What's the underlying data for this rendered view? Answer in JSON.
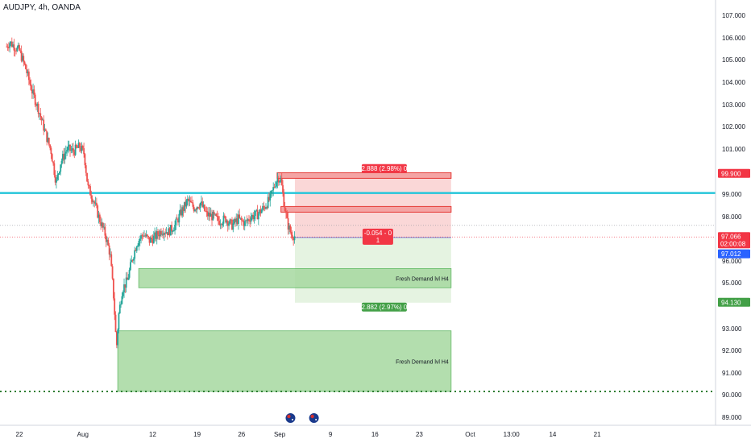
{
  "header": {
    "symbol_title": "AUDJPY, 4h, OANDA"
  },
  "colors": {
    "up": "#26a69a",
    "down": "#ef5350",
    "resistance_line": "#26c6da",
    "support_dots": "#2e7d32",
    "stop_fill": "#f8c9c9",
    "target_fill": "#dff0da",
    "demand_fill": "#a6d9a0",
    "supply_fill": "#f4a4a4",
    "price_tag_red": "#f23645",
    "price_tag_blue": "#2962ff",
    "price_tag_green": "#43a047"
  },
  "chart_data": {
    "type": "candlestick",
    "timeframe": "4h",
    "ylim": [
      88.5,
      107.6
    ],
    "y_ticks": [
      89.0,
      90.0,
      91.0,
      92.0,
      93.0,
      95.0,
      96.0,
      97.0,
      98.0,
      99.0,
      100.0,
      101.0,
      102.0,
      103.0,
      104.0,
      105.0,
      106.0,
      107.0
    ],
    "y_tick_labels": [
      "89.000",
      "90.000",
      "91.000",
      "92.000",
      "93.000",
      "95.000",
      "96.000",
      "97.000",
      "98.000",
      "99.000",
      "100.000",
      "101.000",
      "102.000",
      "103.000",
      "104.000",
      "105.000",
      "106.000",
      "107.000"
    ],
    "x_ticks": [
      {
        "label": "22",
        "day": 0
      },
      {
        "label": "Aug",
        "day": 10
      },
      {
        "label": "12",
        "day": 21
      },
      {
        "label": "19",
        "day": 28
      },
      {
        "label": "26",
        "day": 35
      },
      {
        "label": "Sep",
        "day": 41
      },
      {
        "label": "9",
        "day": 49
      },
      {
        "label": "16",
        "day": 56
      },
      {
        "label": "23",
        "day": 63
      },
      {
        "label": "Oct",
        "day": 71
      },
      {
        "label": "13:00",
        "day": 77.5
      },
      {
        "label": "14",
        "day": 84
      },
      {
        "label": "21",
        "day": 91
      }
    ],
    "price_path": [
      [
        -2,
        105.6
      ],
      [
        -1.5,
        105.8
      ],
      [
        0,
        105.4
      ],
      [
        1,
        104.6
      ],
      [
        2,
        103.6
      ],
      [
        3,
        102.8
      ],
      [
        4,
        101.8
      ],
      [
        5,
        100.9
      ],
      [
        5.8,
        99.5
      ],
      [
        6.5,
        100.4
      ],
      [
        7.5,
        101.0
      ],
      [
        8.5,
        100.9
      ],
      [
        9.5,
        101.1
      ],
      [
        10.2,
        100.8
      ],
      [
        10.8,
        99.3
      ],
      [
        11.6,
        98.8
      ],
      [
        12.6,
        97.9
      ],
      [
        13.5,
        97.2
      ],
      [
        14.3,
        96.3
      ],
      [
        14.9,
        94.2
      ],
      [
        15.3,
        92.1
      ],
      [
        15.6,
        93.5
      ],
      [
        16.2,
        94.7
      ],
      [
        17,
        95.1
      ],
      [
        17.7,
        96.0
      ],
      [
        18.5,
        96.8
      ],
      [
        19.5,
        97.2
      ],
      [
        20.5,
        96.9
      ],
      [
        21.5,
        97.1
      ],
      [
        22.5,
        97.4
      ],
      [
        23.5,
        97.3
      ],
      [
        24.5,
        97.6
      ],
      [
        25.5,
        98.2
      ],
      [
        26.5,
        98.7
      ],
      [
        27.5,
        98.4
      ],
      [
        28.5,
        98.6
      ],
      [
        29.5,
        98.1
      ],
      [
        30.5,
        98.0
      ],
      [
        31.5,
        97.8
      ],
      [
        32.5,
        97.9
      ],
      [
        33.5,
        97.6
      ],
      [
        34.5,
        97.9
      ],
      [
        35.5,
        97.7
      ],
      [
        36.5,
        98.0
      ],
      [
        37.5,
        98.1
      ],
      [
        38.5,
        98.4
      ],
      [
        39.5,
        98.8
      ],
      [
        40.3,
        99.5
      ],
      [
        40.8,
        99.75
      ],
      [
        41.2,
        99.6
      ],
      [
        41.7,
        98.6
      ],
      [
        42.2,
        97.7
      ],
      [
        42.8,
        97.2
      ],
      [
        43.4,
        97.1
      ]
    ],
    "annotations": {
      "resistance_line": 99.05,
      "support_line": 90.15,
      "position": {
        "x_start": 43.4,
        "x_end": 68,
        "entry": 97.04,
        "stop": 99.9,
        "target": 94.13,
        "stop_label": "2.888 (2.98%) 0",
        "target_label": "2.882 (2.97%) 0",
        "pnl_label_line1": "-0.054 - 0",
        "pnl_label_line2": "1"
      },
      "supply_zones": [
        {
          "x_start": 40.6,
          "x_end": 68,
          "top": 99.95,
          "bottom": 99.7
        },
        {
          "x_start": 41.2,
          "x_end": 68,
          "top": 98.45,
          "bottom": 98.2
        }
      ],
      "demand_zones": [
        {
          "x_start": 18.8,
          "x_end": 68,
          "top": 95.65,
          "bottom": 94.78,
          "label": "Fresh Demand lvl H4"
        },
        {
          "x_start": 15.5,
          "x_end": 68,
          "top": 92.9,
          "bottom": 90.15,
          "label": "Fresh Demand lvl H4"
        }
      ],
      "price_tags": [
        {
          "value": 99.9,
          "label": "99.900",
          "kind": "red"
        },
        {
          "value": 97.066,
          "label": "97.066",
          "sub": "02:00:08",
          "kind": "red"
        },
        {
          "value": 97.012,
          "label": "97.012",
          "kind": "blue"
        },
        {
          "value": 94.13,
          "label": "94.130",
          "kind": "green"
        }
      ],
      "event_markers": [
        {
          "day": 42.7
        },
        {
          "day": 46.4
        }
      ]
    }
  }
}
